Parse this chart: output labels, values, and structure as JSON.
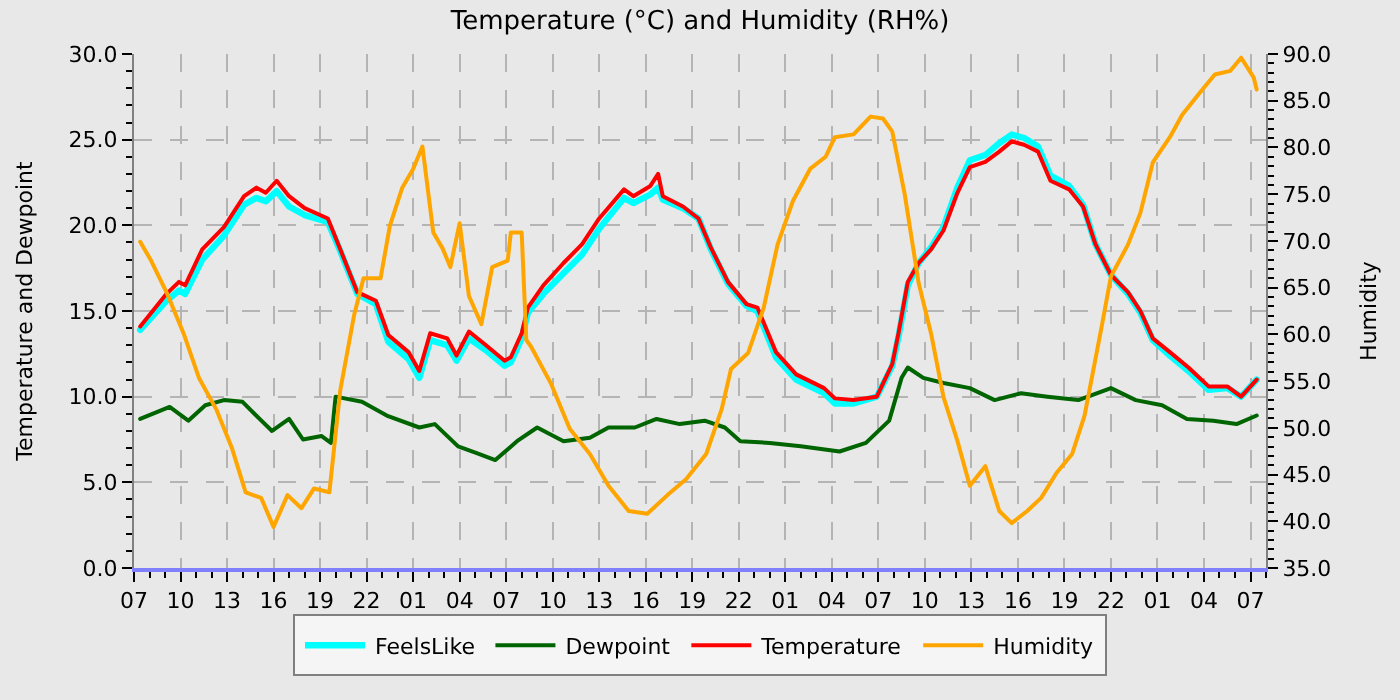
{
  "chart_data": {
    "type": "line",
    "title": "Temperature (°C) and Humidity (RH%)",
    "ylabel": "Temperature and Dewpoint",
    "y2label": "Humidity",
    "xlim": [
      "--01-01T07:00",
      "--01-04T08:00"
    ],
    "xticks": [
      {
        "value": "--01-01T07:00",
        "label": "07"
      },
      {
        "value": "--01-01T10:00",
        "label": "10"
      },
      {
        "value": "--01-01T13:00",
        "label": "13"
      },
      {
        "value": "--01-01T16:00",
        "label": "16"
      },
      {
        "value": "--01-01T19:00",
        "label": "19"
      },
      {
        "value": "--01-01T22:00",
        "label": "22"
      },
      {
        "value": "--01-02T01:00",
        "label": "01"
      },
      {
        "value": "--01-02T04:00",
        "label": "04"
      },
      {
        "value": "--01-02T07:00",
        "label": "07"
      },
      {
        "value": "--01-02T10:00",
        "label": "10"
      },
      {
        "value": "--01-02T13:00",
        "label": "13"
      },
      {
        "value": "--01-02T16:00",
        "label": "16"
      },
      {
        "value": "--01-02T19:00",
        "label": "19"
      },
      {
        "value": "--01-02T22:00",
        "label": "22"
      },
      {
        "value": "--01-03T01:00",
        "label": "01"
      },
      {
        "value": "--01-03T04:00",
        "label": "04"
      },
      {
        "value": "--01-03T07:00",
        "label": "07"
      },
      {
        "value": "--01-03T10:00",
        "label": "10"
      },
      {
        "value": "--01-03T13:00",
        "label": "13"
      },
      {
        "value": "--01-03T16:00",
        "label": "16"
      },
      {
        "value": "--01-03T19:00",
        "label": "19"
      },
      {
        "value": "--01-03T22:00",
        "label": "22"
      },
      {
        "value": "--01-04T01:00",
        "label": "01"
      },
      {
        "value": "--01-04T04:00",
        "label": "04"
      },
      {
        "value": "--01-04T07:00",
        "label": "07"
      }
    ],
    "ylim": [
      0,
      30
    ],
    "yticks": [
      {
        "value": 0,
        "label": "0.0"
      },
      {
        "value": 5,
        "label": "5.0"
      },
      {
        "value": 10,
        "label": "10.0"
      },
      {
        "value": 15,
        "label": "15.0"
      },
      {
        "value": 20,
        "label": "20.0"
      },
      {
        "value": 25,
        "label": "25.0"
      },
      {
        "value": 30,
        "label": "30.0"
      }
    ],
    "y2lim": [
      35,
      90
    ],
    "y2ticks": [
      {
        "value": 35,
        "label": "35.0"
      },
      {
        "value": 40,
        "label": "40.0"
      },
      {
        "value": 45,
        "label": "45.0"
      },
      {
        "value": 50,
        "label": "50.0"
      },
      {
        "value": 55,
        "label": "55.0"
      },
      {
        "value": 60,
        "label": "60.0"
      },
      {
        "value": 65,
        "label": "65.0"
      },
      {
        "value": 70,
        "label": "70.0"
      },
      {
        "value": 75,
        "label": "75.0"
      },
      {
        "value": 80,
        "label": "80.0"
      },
      {
        "value": 85,
        "label": "85.0"
      },
      {
        "value": 90,
        "label": "90.0"
      }
    ],
    "grid": true,
    "legend": "bottom",
    "line_style": "solid",
    "series": [
      {
        "name": "FeelsLike",
        "color": "#00ffff",
        "x": [
          "--01-01T07:24",
          "--01-01T09:06",
          "--01-01T09:54",
          "--01-01T10:18",
          "--01-01T11:24",
          "--01-01T12:48",
          "--01-01T14:06",
          "--01-01T14:54",
          "--01-01T15:30",
          "--01-01T16:12",
          "--01-01T17:00",
          "--01-01T18:00",
          "--01-01T19:30",
          "--01-01T20:18",
          "--01-01T21:24",
          "--01-01T22:36",
          "--01-01T23:24",
          "--01-02T00:42",
          "--01-02T01:24",
          "--01-02T02:06",
          "--01-02T03:12",
          "--01-02T03:48",
          "--01-02T04:36",
          "--01-02T05:42",
          "--01-02T06:54",
          "--01-02T07:18",
          "--01-02T08:00",
          "--01-02T08:24",
          "--01-02T09:24",
          "--01-02T10:42",
          "--01-02T11:54",
          "--01-02T13:00",
          "--01-02T14:36",
          "--01-02T15:12",
          "--01-02T16:18",
          "--01-02T16:48",
          "--01-02T17:06",
          "--01-02T18:24",
          "--01-02T19:24",
          "--01-02T20:12",
          "--01-02T21:18",
          "--01-02T22:30",
          "--01-02T23:12",
          "--01-03T00:24",
          "--01-03T01:42",
          "--01-03T03:30",
          "--01-03T04:12",
          "--01-03T05:24",
          "--01-03T06:54",
          "--01-03T07:54",
          "--01-03T08:18",
          "--01-03T08:54",
          "--01-03T09:36",
          "--01-03T10:24",
          "--01-03T11:12",
          "--01-03T12:06",
          "--01-03T12:54",
          "--01-03T13:54",
          "--01-03T14:48",
          "--01-03T15:36",
          "--01-03T16:24",
          "--01-03T17:18",
          "--01-03T18:06",
          "--01-03T19:18",
          "--01-03T20:12",
          "--01-03T21:00",
          "--01-03T22:00",
          "--01-03T23:06",
          "--01-03T23:54",
          "--01-04T00:42",
          "--01-04T01:48",
          "--01-04T03:00",
          "--01-04T04:18",
          "--01-04T05:30",
          "--01-04T06:24",
          "--01-04T07:24"
        ],
        "values": [
          13.9,
          15.6,
          16.2,
          16.0,
          18.0,
          19.4,
          21.2,
          21.6,
          21.4,
          22.0,
          21.1,
          20.6,
          20.2,
          18.5,
          16.0,
          15.4,
          13.2,
          12.2,
          11.1,
          13.3,
          13.0,
          12.1,
          13.4,
          12.7,
          11.8,
          12.0,
          13.4,
          14.9,
          16.0,
          17.2,
          18.3,
          19.8,
          21.6,
          21.3,
          21.8,
          22.2,
          21.5,
          21.0,
          20.4,
          18.6,
          16.6,
          15.3,
          15.0,
          12.3,
          11.0,
          10.2,
          9.6,
          9.6,
          10.0,
          11.8,
          13.5,
          16.5,
          17.8,
          18.7,
          19.9,
          22.2,
          23.8,
          24.1,
          24.8,
          25.3,
          25.1,
          24.6,
          22.9,
          22.3,
          21.2,
          18.9,
          17.1,
          16.0,
          14.9,
          13.3,
          12.4,
          11.5,
          10.4,
          10.5,
          10.0,
          11.0
        ]
      },
      {
        "name": "Dewpoint",
        "color": "#006400",
        "x": [
          "--01-01T07:24",
          "--01-01T09:18",
          "--01-01T10:30",
          "--01-01T11:36",
          "--01-01T12:48",
          "--01-01T14:00",
          "--01-01T15:06",
          "--01-01T15:54",
          "--01-01T17:00",
          "--01-01T17:54",
          "--01-01T19:06",
          "--01-01T19:42",
          "--01-01T20:00",
          "--01-01T21:42",
          "--01-01T23:18",
          "--01-02T01:24",
          "--01-02T02:24",
          "--01-02T03:54",
          "--01-02T05:06",
          "--01-02T06:18",
          "--01-02T07:42",
          "--01-02T09:00",
          "--01-02T10:42",
          "--01-02T12:24",
          "--01-02T13:36",
          "--01-02T15:18",
          "--01-02T16:42",
          "--01-02T18:12",
          "--01-02T19:48",
          "--01-02T21:06",
          "--01-02T22:06",
          "--01-03T00:00",
          "--01-03T02:00",
          "--01-03T04:30",
          "--01-03T06:12",
          "--01-03T07:42",
          "--01-03T08:30",
          "--01-03T08:54",
          "--01-03T09:54",
          "--01-03T11:12",
          "--01-03T12:54",
          "--01-03T14:30",
          "--01-03T16:12",
          "--01-03T17:54",
          "--01-03T19:54",
          "--01-03T22:00",
          "--01-03T23:36",
          "--01-04T01:18",
          "--01-04T02:54",
          "--01-04T04:36",
          "--01-04T06:06",
          "--01-04T07:24"
        ],
        "values": [
          8.7,
          9.4,
          8.6,
          9.5,
          9.8,
          9.7,
          8.7,
          8.0,
          8.7,
          7.5,
          7.7,
          7.3,
          10.0,
          9.7,
          8.9,
          8.2,
          8.4,
          7.1,
          6.7,
          6.3,
          7.4,
          8.2,
          7.4,
          7.6,
          8.2,
          8.2,
          8.7,
          8.4,
          8.6,
          8.2,
          7.4,
          7.3,
          7.1,
          6.8,
          7.3,
          8.6,
          11.1,
          11.7,
          11.1,
          10.8,
          10.5,
          9.8,
          10.2,
          10.0,
          9.8,
          10.5,
          9.8,
          9.5,
          8.7,
          8.6,
          8.4,
          8.9
        ]
      },
      {
        "name": "Temperature",
        "color": "#ff0000",
        "x": [
          "--01-01T07:24",
          "--01-01T09:06",
          "--01-01T09:54",
          "--01-01T10:18",
          "--01-01T11:24",
          "--01-01T12:48",
          "--01-01T14:06",
          "--01-01T14:54",
          "--01-01T15:30",
          "--01-01T16:12",
          "--01-01T17:00",
          "--01-01T18:00",
          "--01-01T19:30",
          "--01-01T20:18",
          "--01-01T21:24",
          "--01-01T22:36",
          "--01-01T23:24",
          "--01-02T00:42",
          "--01-02T01:24",
          "--01-02T02:06",
          "--01-02T03:12",
          "--01-02T03:48",
          "--01-02T04:36",
          "--01-02T05:42",
          "--01-02T06:54",
          "--01-02T07:18",
          "--01-02T08:00",
          "--01-02T08:24",
          "--01-02T09:24",
          "--01-02T10:42",
          "--01-02T11:54",
          "--01-02T13:00",
          "--01-02T14:36",
          "--01-02T15:12",
          "--01-02T16:18",
          "--01-02T16:48",
          "--01-02T17:06",
          "--01-02T18:24",
          "--01-02T19:24",
          "--01-02T20:12",
          "--01-02T21:18",
          "--01-02T22:30",
          "--01-02T23:12",
          "--01-03T00:24",
          "--01-03T01:42",
          "--01-03T03:30",
          "--01-03T04:12",
          "--01-03T05:24",
          "--01-03T06:54",
          "--01-03T07:54",
          "--01-03T08:18",
          "--01-03T08:54",
          "--01-03T09:36",
          "--01-03T10:24",
          "--01-03T11:12",
          "--01-03T12:06",
          "--01-03T12:54",
          "--01-03T13:54",
          "--01-03T14:48",
          "--01-03T15:36",
          "--01-03T16:24",
          "--01-03T17:18",
          "--01-03T18:06",
          "--01-03T19:18",
          "--01-03T20:12",
          "--01-03T21:00",
          "--01-03T22:00",
          "--01-03T23:06",
          "--01-03T23:54",
          "--01-04T00:42",
          "--01-04T01:48",
          "--01-04T03:00",
          "--01-04T04:18",
          "--01-04T05:30",
          "--01-04T06:24",
          "--01-04T07:24"
        ],
        "values": [
          14.1,
          16.0,
          16.7,
          16.5,
          18.6,
          19.9,
          21.7,
          22.2,
          21.9,
          22.6,
          21.7,
          21.0,
          20.4,
          18.6,
          16.1,
          15.6,
          13.6,
          12.6,
          11.5,
          13.7,
          13.4,
          12.4,
          13.8,
          13.0,
          12.1,
          12.3,
          13.7,
          15.2,
          16.5,
          17.8,
          18.9,
          20.4,
          22.1,
          21.7,
          22.3,
          23.0,
          21.7,
          21.1,
          20.4,
          18.7,
          16.7,
          15.4,
          15.2,
          12.6,
          11.3,
          10.5,
          9.9,
          9.8,
          10.0,
          11.9,
          13.7,
          16.7,
          17.8,
          18.6,
          19.7,
          21.9,
          23.4,
          23.7,
          24.3,
          24.9,
          24.7,
          24.3,
          22.6,
          22.1,
          21.1,
          18.9,
          17.1,
          16.1,
          15.0,
          13.4,
          12.6,
          11.7,
          10.6,
          10.6,
          10.0,
          11.0
        ]
      },
      {
        "name": "Humidity",
        "color": "#ffa500",
        "axis": "y2",
        "x": [
          "--01-01T07:24",
          "--01-01T08:06",
          "--01-01T09:06",
          "--01-01T10:12",
          "--01-01T11:12",
          "--01-01T12:18",
          "--01-01T13:18",
          "--01-01T14:12",
          "--01-01T15:12",
          "--01-01T16:00",
          "--01-01T16:54",
          "--01-01T17:48",
          "--01-01T18:36",
          "--01-01T19:36",
          "--01-01T20:18",
          "--01-01T21:12",
          "--01-01T21:48",
          "--01-01T22:54",
          "--01-01T23:30",
          "--01-02T00:18",
          "--01-02T01:00",
          "--01-02T01:36",
          "--01-02T02:18",
          "--01-02T02:54",
          "--01-02T03:24",
          "--01-02T04:00",
          "--01-02T04:36",
          "--01-02T05:24",
          "--01-02T06:06",
          "--01-02T07:06",
          "--01-02T07:18",
          "--01-02T08:00",
          "--01-02T08:18",
          "--01-02T08:36",
          "--01-02T09:54",
          "--01-02T11:06",
          "--01-02T12:24",
          "--01-02T13:36",
          "--01-02T14:54",
          "--01-02T16:06",
          "--01-02T17:24",
          "--01-02T18:36",
          "--01-02T19:54",
          "--01-02T20:54",
          "--01-02T21:30",
          "--01-02T22:36",
          "--01-02T23:36",
          "--01-03T00:30",
          "--01-03T01:30",
          "--01-03T02:36",
          "--01-03T03:36",
          "--01-03T04:12",
          "--01-03T05:24",
          "--01-03T06:30",
          "--01-03T07:18",
          "--01-03T07:54",
          "--01-03T08:42",
          "--01-03T09:36",
          "--01-03T10:24",
          "--01-03T11:12",
          "--01-03T12:06",
          "--01-03T12:54",
          "--01-03T13:54",
          "--01-03T14:48",
          "--01-03T15:36",
          "--01-03T16:36",
          "--01-03T17:30",
          "--01-03T18:30",
          "--01-03T19:30",
          "--01-03T20:18",
          "--01-03T21:24",
          "--01-03T22:00",
          "--01-03T23:06",
          "--01-03T23:54",
          "--01-04T00:42",
          "--01-04T01:48",
          "--01-04T02:36",
          "--01-04T03:54",
          "--01-04T04:42",
          "--01-04T05:42",
          "--01-04T06:24",
          "--01-04T07:12",
          "--01-04T07:24"
        ],
        "values": [
          69.9,
          67.9,
          64.5,
          60.1,
          55.3,
          52.0,
          47.9,
          43.1,
          42.5,
          39.4,
          42.8,
          41.4,
          43.5,
          43.1,
          54.0,
          62.1,
          66.0,
          66.0,
          71.6,
          75.7,
          77.7,
          80.1,
          70.9,
          69.2,
          67.2,
          71.9,
          64.1,
          61.1,
          67.2,
          67.9,
          70.9,
          70.9,
          59.4,
          58.7,
          54.7,
          49.9,
          47.2,
          43.8,
          41.1,
          40.8,
          42.8,
          44.5,
          47.2,
          52.0,
          56.3,
          58.0,
          62.8,
          69.6,
          74.3,
          77.7,
          79.0,
          81.1,
          81.4,
          83.3,
          83.1,
          81.7,
          75.0,
          65.5,
          60.1,
          53.3,
          48.6,
          43.8,
          45.9,
          41.1,
          39.8,
          41.1,
          42.5,
          45.2,
          47.2,
          51.3,
          60.8,
          66.2,
          69.6,
          73.0,
          78.4,
          81.1,
          83.5,
          86.2,
          87.8,
          88.2,
          89.6,
          87.5,
          86.2
        ]
      }
    ]
  }
}
